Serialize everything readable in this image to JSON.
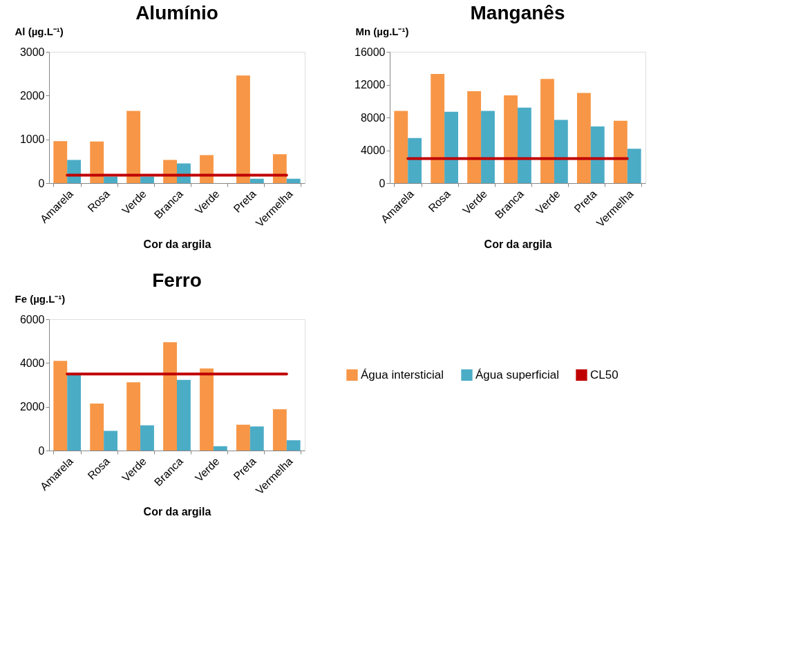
{
  "chart_data": [
    {
      "type": "bar",
      "title": "Alumínio",
      "ylabel": "Al (µg.L⁻¹)",
      "xlabel": "Cor da argila",
      "categories": [
        "Amarela",
        "Rosa",
        "Verde",
        "Branca",
        "Verde",
        "Preta",
        "Vermelha"
      ],
      "series": [
        {
          "name": "Água intersticial",
          "color": "#f79646",
          "values": [
            960,
            950,
            1650,
            530,
            640,
            2460,
            660
          ]
        },
        {
          "name": "Água superficial",
          "color": "#4bacc6",
          "values": [
            530,
            150,
            150,
            450,
            null,
            100,
            100
          ]
        },
        {
          "name": "CL50",
          "type": "line",
          "color": "#c00000",
          "values": [
            180,
            180,
            180,
            180,
            180,
            180,
            180
          ]
        }
      ],
      "ylim": [
        0,
        3000
      ],
      "yticks": [
        0,
        1000,
        2000,
        3000
      ],
      "grid": false,
      "legend": false
    },
    {
      "type": "bar",
      "title": "Manganês",
      "ylabel": "Mn (µg.L⁻¹)",
      "xlabel": "Cor da argila",
      "categories": [
        "Amarela",
        "Rosa",
        "Verde",
        "Branca",
        "Verde",
        "Preta",
        "Vermelha"
      ],
      "series": [
        {
          "name": "Água intersticial",
          "color": "#f79646",
          "values": [
            8800,
            13300,
            11200,
            10700,
            12700,
            11000,
            7600
          ]
        },
        {
          "name": "Água superficial",
          "color": "#4bacc6",
          "values": [
            5500,
            8700,
            8800,
            9200,
            7700,
            6900,
            4200
          ]
        },
        {
          "name": "CL50",
          "type": "line",
          "color": "#c00000",
          "values": [
            3000,
            3000,
            3000,
            3000,
            3000,
            3000,
            3000
          ]
        }
      ],
      "ylim": [
        0,
        16000
      ],
      "yticks": [
        0,
        4000,
        8000,
        12000,
        16000
      ],
      "grid": false,
      "legend": false
    },
    {
      "type": "bar",
      "title": "Ferro",
      "ylabel": "Fe (µg.L⁻¹)",
      "xlabel": "Cor da argila",
      "categories": [
        "Amarela",
        "Rosa",
        "Verde",
        "Branca",
        "Verde",
        "Preta",
        "Vermelha"
      ],
      "series": [
        {
          "name": "Água intersticial",
          "color": "#f79646",
          "values": [
            4100,
            2150,
            3120,
            4950,
            3750,
            1180,
            1890
          ]
        },
        {
          "name": "Água superficial",
          "color": "#4bacc6",
          "values": [
            3500,
            900,
            1150,
            3230,
            200,
            1100,
            470
          ]
        },
        {
          "name": "CL50",
          "type": "line",
          "color": "#c00000",
          "values": [
            3500,
            3500,
            3500,
            3500,
            3500,
            3500,
            3500
          ]
        }
      ],
      "ylim": [
        0,
        6000
      ],
      "yticks": [
        0,
        2000,
        4000,
        6000
      ],
      "grid": false,
      "legend": "right"
    }
  ]
}
